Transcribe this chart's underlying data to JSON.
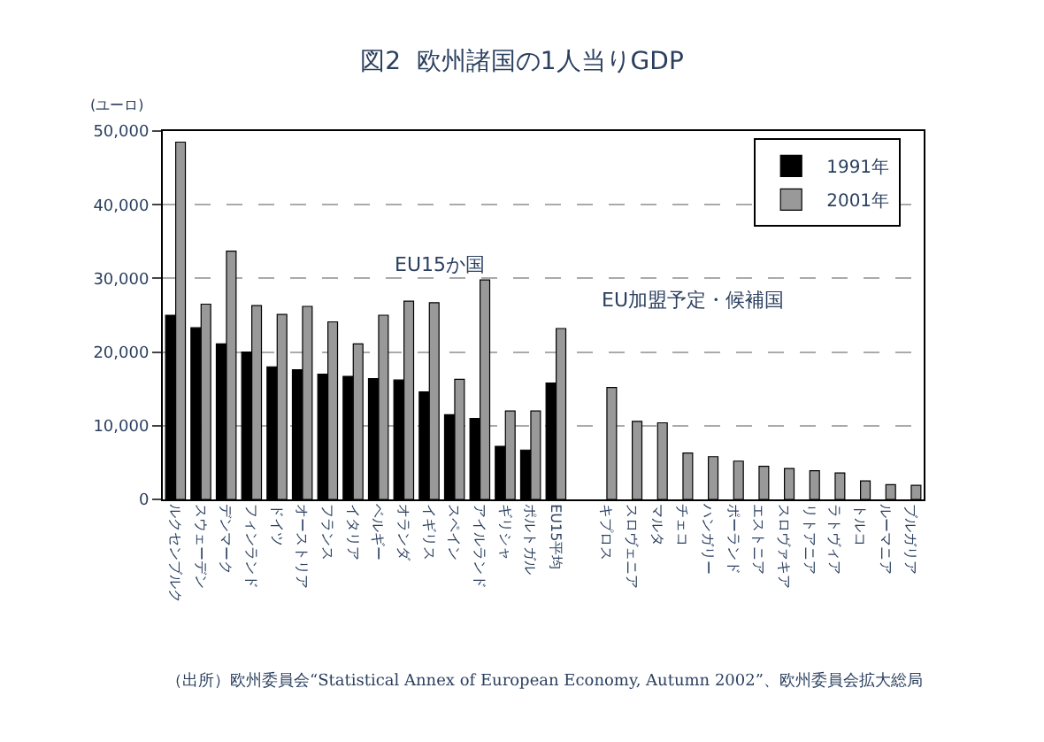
{
  "chart_data": {
    "type": "bar",
    "title": "図2  欧州諸国の1人当りGDP",
    "ylabel": "(ユーロ)",
    "categories": [
      "ルクセンブルク",
      "スウェーデン",
      "デンマーク",
      "フィンランド",
      "ドイツ",
      "オーストリア",
      "フランス",
      "イタリア",
      "ベルギー",
      "オランダ",
      "イギリス",
      "スペイン",
      "アイルランド",
      "ギリシャ",
      "ポルトガル",
      "EU15平均",
      null,
      "キプロス",
      "スロヴェニア",
      "マルタ",
      "チェコ",
      "ハンガリー",
      "ポーランド",
      "エストニア",
      "スロヴァキア",
      "リトアニア",
      "ラトヴィア",
      "トルコ",
      "ルーマニア",
      "ブルガリア"
    ],
    "series": [
      {
        "name": "1991年",
        "color": "#000000",
        "values": [
          25000,
          23300,
          21100,
          20000,
          18000,
          17600,
          17000,
          16700,
          16400,
          16200,
          14600,
          11500,
          11000,
          7200,
          6700,
          15800,
          null,
          null,
          null,
          null,
          null,
          null,
          null,
          null,
          null,
          null,
          null,
          null,
          null,
          null
        ]
      },
      {
        "name": "2001年",
        "color": "#999999",
        "values": [
          48500,
          26500,
          33700,
          26300,
          25100,
          26200,
          24100,
          21100,
          25000,
          26900,
          26700,
          16300,
          29800,
          12000,
          12000,
          23200,
          null,
          15200,
          10600,
          10400,
          6300,
          5800,
          5200,
          4500,
          4200,
          3900,
          3600,
          2500,
          2000,
          1900
        ]
      }
    ],
    "ylim": [
      0,
      50000
    ],
    "yticks": [
      0,
      {
        "value": 10000,
        "label": "10,000"
      },
      {
        "value": 20000,
        "label": "20,000"
      },
      {
        "value": 30000,
        "label": "30,000"
      },
      {
        "value": 40000,
        "label": "40,000"
      },
      {
        "value": 50000,
        "label": "50,000"
      }
    ],
    "grid": "y",
    "legend": "top right",
    "annotations": [
      "EU15か国",
      "EU加盟予定・候補国",
      "（出所）欧州委員会“Statistical Annex of European Economy, Autumn 2002”、欧州委員会拡大総局"
    ]
  }
}
